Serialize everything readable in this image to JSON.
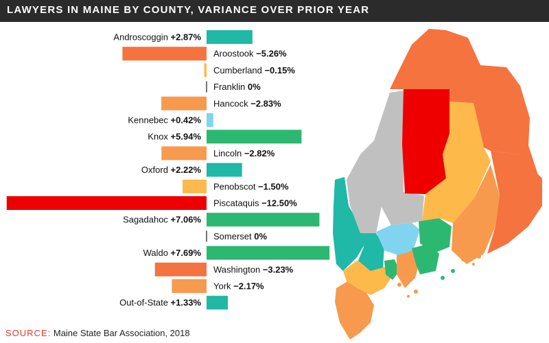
{
  "title": "LAWYERS IN MAINE BY COUNTY, VARIANCE OVER PRIOR YEAR",
  "source": {
    "label": "SOURCE:",
    "text": "Maine State Bar Association,  2018"
  },
  "colors": {
    "title_bg": "#2b2b2b",
    "teal": "#20b8a6",
    "orange_red": "#f4733f",
    "yellow": "#fdb94a",
    "light_orange": "#f79a4d",
    "light_blue": "#80d4f0",
    "green": "#2db872",
    "red": "#ee0000",
    "gray": "#c0c0c0"
  },
  "chart_data": {
    "type": "bar",
    "orientation": "horizontal-diverging",
    "categories": [
      "Androscoggin",
      "Aroostook",
      "Cumberland",
      "Franklin",
      "Hancock",
      "Kennebec",
      "Knox",
      "Lincoln",
      "Oxford",
      "Penobscot",
      "Piscataquis",
      "Sagadahoc",
      "Somerset",
      "Waldo",
      "Washington",
      "York",
      "Out-of-State"
    ],
    "values": [
      2.87,
      -5.26,
      -0.15,
      0,
      -2.83,
      0.42,
      5.94,
      -2.82,
      2.22,
      -1.5,
      -12.5,
      7.06,
      0,
      7.69,
      -3.23,
      -2.17,
      1.33
    ],
    "labels": [
      "+2.87%",
      "−5.26%",
      "−0.15%",
      "0%",
      "−2.83%",
      "+0.42%",
      "+5.94%",
      "−2.82%",
      "+2.22%",
      "−1.50%",
      "−12.50%",
      "+7.06%",
      "0%",
      "+7.69%",
      "−3.23%",
      "−2.17%",
      "+1.33%"
    ],
    "bar_colors": [
      "#20b8a6",
      "#f4733f",
      "#fdb94a",
      "#444444",
      "#f79a4d",
      "#80d4f0",
      "#2db872",
      "#f79a4d",
      "#20b8a6",
      "#fdb94a",
      "#ee0000",
      "#2db872",
      "#444444",
      "#2db872",
      "#f4733f",
      "#f79a4d",
      "#20b8a6"
    ],
    "xlim": [
      -12.5,
      7.69
    ],
    "xlabel": "",
    "ylabel": "",
    "grid": false,
    "legend": "none"
  }
}
